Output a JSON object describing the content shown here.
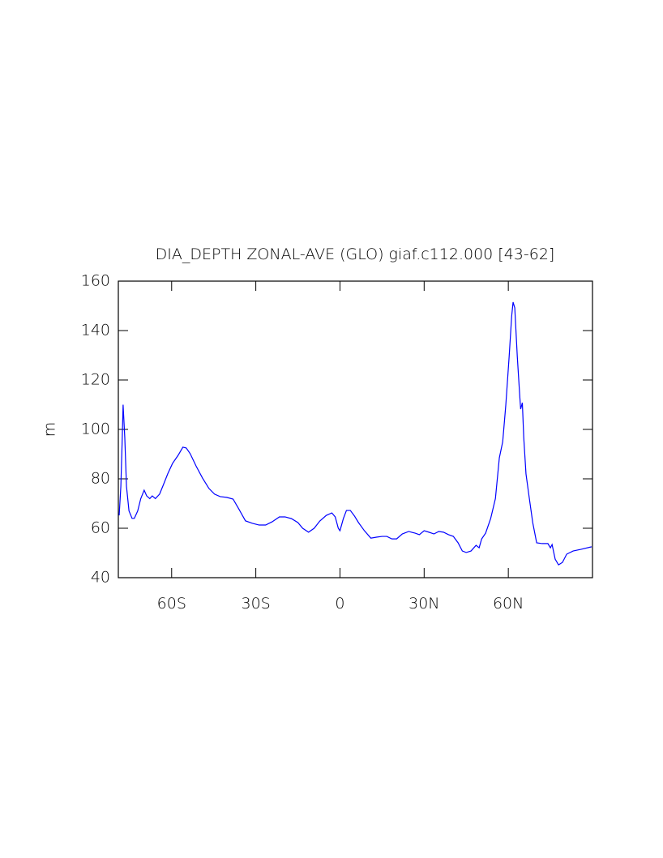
{
  "chart_data": {
    "type": "line",
    "title": "DIA_DEPTH ZONAL-AVE (GLO) giaf.c112.000 [43-62]",
    "y_label": "m",
    "color": "#0000ff",
    "xlim": [
      -79,
      90
    ],
    "ylim": [
      40,
      160
    ],
    "xticks": [
      {
        "value": -60,
        "label": "60S"
      },
      {
        "value": -30,
        "label": "30S"
      },
      0,
      {
        "value": 30,
        "label": "30N"
      },
      {
        "value": 60,
        "label": "60N"
      }
    ],
    "yticks": [
      40,
      60,
      80,
      100,
      120,
      140,
      160
    ],
    "x": [
      -78.7,
      -78.1,
      -77.6,
      -77.3,
      -76.7,
      -76.1,
      -75.2,
      -74.1,
      -73.3,
      -72.1,
      -71,
      -69.8,
      -68.9,
      -67.8,
      -66.9,
      -65.8,
      -64.3,
      -62.9,
      -61.4,
      -59.7,
      -57.7,
      -56,
      -54.8,
      -53.4,
      -51.3,
      -49,
      -46.7,
      -44.7,
      -42.7,
      -40.4,
      -38.1,
      -36.1,
      -33.7,
      -31.2,
      -28.8,
      -26.5,
      -24.2,
      -21.6,
      -19.6,
      -17.3,
      -15,
      -13.3,
      -11.2,
      -9.2,
      -7.2,
      -4.9,
      -2.9,
      -1.7,
      -0.6,
      0,
      1.2,
      2.3,
      3.7,
      5.2,
      6.6,
      8.7,
      11,
      13,
      15,
      16.7,
      18.5,
      20.2,
      22.2,
      24.5,
      26.8,
      28.3,
      30,
      31.7,
      33.5,
      35.2,
      36.9,
      38.7,
      40.4,
      42.1,
      43.6,
      45,
      46.7,
      48.5,
      49.6,
      50.5,
      51.9,
      53.7,
      55.4,
      56.8,
      58,
      59.1,
      60.3,
      61.2,
      61.7,
      62.3,
      63.2,
      64.1,
      64.4,
      65,
      65.5,
      66.3,
      67.5,
      68.7,
      70.1,
      72.1,
      74.1,
      75,
      75.6,
      76.7,
      77.9,
      79.3,
      80.8,
      83.1,
      86,
      89.7
    ],
    "values": [
      65.2,
      77,
      96.7,
      110,
      96.7,
      77,
      67,
      64,
      64,
      67,
      72,
      75.4,
      73.1,
      72,
      73.1,
      72,
      73.8,
      77.7,
      82,
      86.2,
      89.5,
      92.8,
      92.5,
      90.2,
      85.2,
      80.3,
      76.1,
      73.8,
      72.8,
      72.5,
      71.8,
      67.9,
      63,
      62,
      61.3,
      61.3,
      62.6,
      64.6,
      64.6,
      63.9,
      62.3,
      60,
      58.4,
      60,
      62.9,
      65.2,
      66.2,
      64.6,
      60,
      59,
      63.9,
      67.2,
      67.2,
      64.9,
      62.3,
      59,
      56,
      56.4,
      56.7,
      56.7,
      55.7,
      55.7,
      57.7,
      58.7,
      58,
      57.4,
      59,
      58.4,
      57.7,
      58.7,
      58.4,
      57.4,
      56.7,
      54.1,
      50.8,
      50.2,
      50.8,
      53.1,
      52.1,
      55.7,
      58,
      63.9,
      72,
      88.5,
      95,
      109.8,
      129.5,
      145.9,
      151.5,
      149.2,
      129.5,
      113.1,
      108.2,
      110.8,
      96.7,
      82,
      72,
      62.3,
      54.1,
      53.8,
      53.8,
      52.1,
      53.4,
      47.5,
      45.2,
      46.2,
      49.5,
      50.8,
      51.5,
      52.5
    ]
  }
}
